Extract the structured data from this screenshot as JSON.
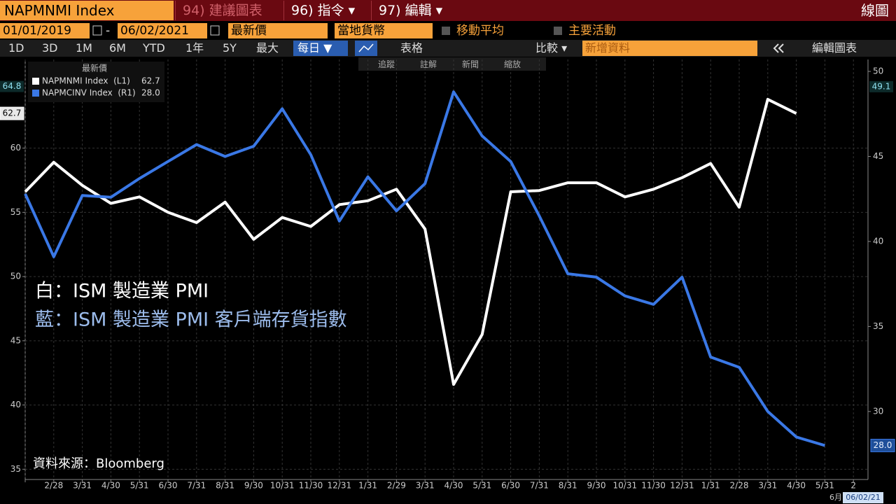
{
  "toolbar": {
    "ticker": "NAPMNMI Index",
    "menu": [
      "94) 建議圖表",
      "96) 指令 ▾",
      "97) 編輯 ▾"
    ],
    "view": "線圖",
    "start_date": "01/01/2019",
    "date_sep": "-",
    "end_date": "06/02/2021",
    "price": "最新價",
    "currency": "當地貨幣",
    "moving_average": "移動平均",
    "key_events": "主要活動",
    "ranges": [
      "1D",
      "3D",
      "1M",
      "6M",
      "YTD",
      "1年",
      "5Y",
      "最大"
    ],
    "frequency": "每日 ▼",
    "table": "表格",
    "compare": "比較 ▾",
    "add_data": "新增資料",
    "edit_chart": "編輯圖表",
    "chart_tools": [
      "追蹤",
      "註解",
      "新聞",
      "縮放"
    ]
  },
  "chart_data": {
    "type": "line",
    "legend_title": "最新價",
    "categories": [
      null,
      "2/28",
      "3/31",
      "4/30",
      "5/31",
      "6/30",
      "7/31",
      "8/31",
      "9/30",
      "10/31",
      "11/30",
      "12/31",
      "1/31",
      "2/29",
      "3/31",
      "4/30",
      "5/31",
      "6/30",
      "7/31",
      "8/31",
      "9/30",
      "10/31",
      "11/30",
      "12/31",
      "1/31",
      "2/28",
      "3/31",
      "4/30",
      "5/31",
      "2"
    ],
    "series": [
      {
        "name": "NAPMNMI Index  (L1)",
        "color": "#ffffff",
        "axis": "y",
        "values": [
          56.6,
          58.9,
          57.1,
          55.7,
          56.2,
          55.0,
          54.2,
          55.8,
          52.9,
          54.6,
          53.9,
          55.6,
          55.9,
          56.8,
          53.7,
          41.6,
          45.5,
          56.6,
          56.7,
          57.3,
          57.3,
          56.2,
          56.8,
          57.7,
          58.8,
          55.4,
          63.8,
          62.7,
          null,
          null
        ]
      },
      {
        "name": "NAPMCINV Index  (R1)",
        "color": "#3a78e6",
        "axis": "y2",
        "values": [
          42.8,
          39.1,
          42.7,
          42.6,
          43.7,
          44.7,
          45.7,
          45.0,
          45.6,
          47.8,
          45.1,
          41.2,
          43.8,
          41.8,
          43.4,
          48.8,
          46.2,
          44.7,
          41.5,
          38.1,
          37.9,
          36.8,
          36.3,
          37.9,
          33.2,
          32.6,
          30.0,
          28.5,
          28,
          null
        ],
        "value_labels": [
          null,
          null,
          null,
          null,
          null,
          null,
          null,
          null,
          null,
          null,
          null,
          null,
          null,
          null,
          null,
          null,
          null,
          null,
          null,
          null,
          null,
          null,
          null,
          null,
          null,
          null,
          null,
          null,
          "28.0",
          null
        ]
      }
    ],
    "ylim": [
      34.2,
      66.9
    ],
    "yticks": [
      35,
      40,
      45,
      50,
      55,
      60
    ],
    "y2lim": [
      26,
      50.7
    ],
    "y2ticks": [
      30,
      35,
      40,
      45,
      50
    ],
    "cursor": {
      "y": 64.8,
      "y2": 49.1
    },
    "grid": true,
    "annotations": [
      {
        "text": "白：ISM 製造業 PMI",
        "color": "#ffffff"
      },
      {
        "text": "藍：ISM 製造業 PMI 客戶端存貨指數",
        "color": "#9cbcec"
      }
    ],
    "source": "資料來源：Bloomberg",
    "x_footer": {
      "month": "6月",
      "date": "06/02/21"
    }
  }
}
